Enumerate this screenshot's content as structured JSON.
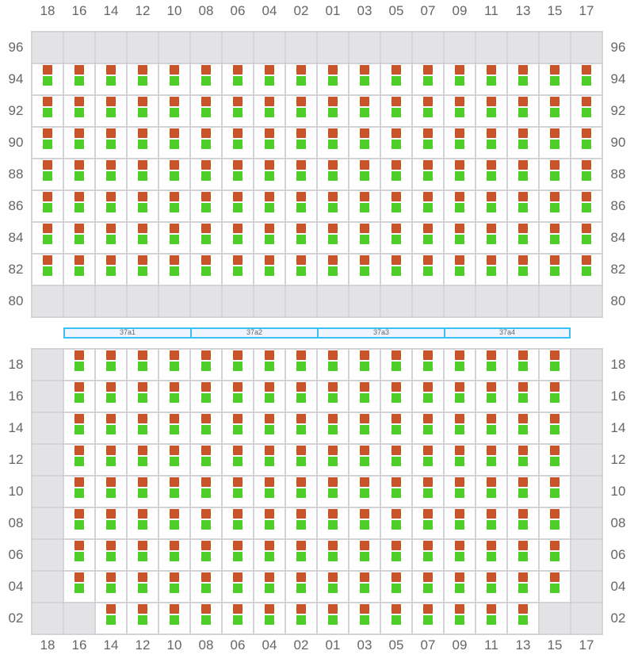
{
  "columns": [
    "18",
    "16",
    "14",
    "12",
    "10",
    "08",
    "06",
    "04",
    "02",
    "01",
    "03",
    "05",
    "07",
    "09",
    "11",
    "13",
    "15",
    "17"
  ],
  "top_grid": {
    "rows": [
      "96",
      "94",
      "92",
      "90",
      "88",
      "86",
      "84",
      "82",
      "80"
    ],
    "empty_rows": [
      "96",
      "80"
    ],
    "empty_cells": []
  },
  "bottom_grid": {
    "rows": [
      "18",
      "16",
      "14",
      "12",
      "10",
      "08",
      "06",
      "04",
      "02"
    ],
    "empty_columns": [
      "18",
      "17"
    ],
    "empty_cells": [
      [
        "02",
        "16"
      ],
      [
        "02",
        "15"
      ]
    ]
  },
  "segments": [
    "37a1",
    "37a2",
    "37a3",
    "37a4"
  ],
  "colors": {
    "top_marker": "#cc5229",
    "bottom_marker": "#4fce2a",
    "segment_border": "#3dbff0",
    "empty_cell": "#e3e3e6"
  }
}
